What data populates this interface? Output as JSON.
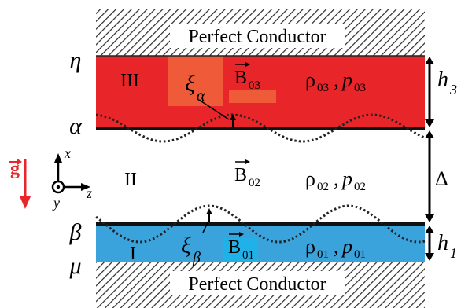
{
  "boundaries": {
    "top": "η",
    "upper_interface": "α",
    "lower_interface": "β",
    "bottom": "μ"
  },
  "conductors": {
    "top_label": "Perfect Conductor",
    "bottom_label": "Perfect Conductor"
  },
  "regions": {
    "upper": {
      "numeral": "III",
      "field": "B",
      "field_sub": "03",
      "rho": "ρ",
      "rho_sub": "03",
      "p": "p",
      "p_sub": "03",
      "thickness": "h",
      "thickness_sub": "3",
      "color": "#e8262a"
    },
    "middle": {
      "numeral": "II",
      "field": "B",
      "field_sub": "02",
      "rho": "ρ",
      "rho_sub": "02",
      "p": "p",
      "p_sub": "02",
      "thickness": "Δ"
    },
    "lower": {
      "numeral": "I",
      "field": "B",
      "field_sub": "01",
      "rho": "ρ",
      "rho_sub": "01",
      "p": "p",
      "p_sub": "01",
      "thickness": "h",
      "thickness_sub": "1",
      "color": "#3aa3dc"
    }
  },
  "perturbations": {
    "upper": {
      "symbol": "ξ",
      "sub": "α"
    },
    "lower": {
      "symbol": "ξ",
      "sub": "β"
    }
  },
  "gravity": {
    "symbol": "g",
    "color": "#e8262a"
  },
  "axes": {
    "x": "x",
    "y": "y",
    "z": "z"
  },
  "separators": {
    "comma": ","
  }
}
